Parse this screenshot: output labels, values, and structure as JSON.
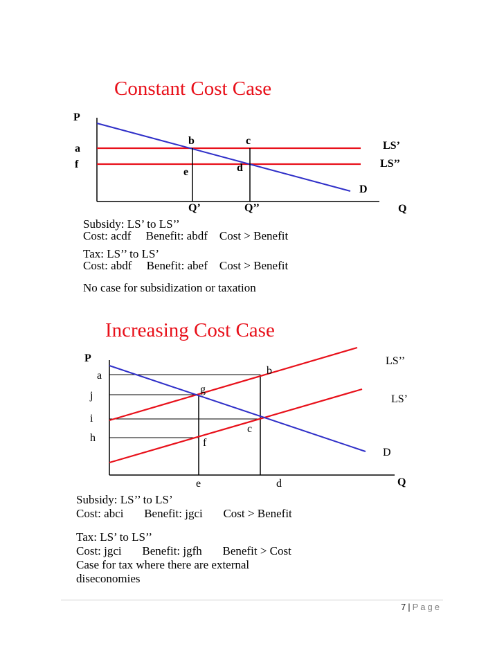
{
  "colors": {
    "supply": "#e8101a",
    "demand": "#2f2fc8",
    "axes": "#000000"
  },
  "constant": {
    "title": "Constant Cost Case",
    "axis_p": "P",
    "axis_q": "Q",
    "labels": {
      "a": "a",
      "f": "f",
      "b": "b",
      "c": "c",
      "e": "e",
      "d": "d",
      "ls1": "LS’",
      "ls2": "LS’’",
      "demand": "D",
      "q1": "Q’",
      "q2": "Q’’"
    },
    "lines": [
      "Subsidy: LS’ to LS’’",
      "Cost: acdf     Benefit: abdf    Cost > Benefit",
      "Tax: LS’’ to LS’",
      "Cost: abdf     Benefit: abef    Cost > Benefit",
      "No case for subsidization or taxation"
    ]
  },
  "increasing": {
    "title": "Increasing Cost Case",
    "axis_p": "P",
    "axis_q": "Q",
    "labels": {
      "a": "a",
      "j": "j",
      "i": "i",
      "h": "h",
      "b": "b",
      "g": "g",
      "c": "c",
      "f": "f",
      "ls2": "LS’’",
      "ls1": "LS’",
      "demand": "D",
      "e": "e",
      "d": "d"
    },
    "lines": [
      "Subsidy: LS’’ to LS’",
      "Cost: abci       Benefit: jgci       Cost > Benefit",
      "Tax: LS’ to LS’’",
      "Cost: jgci       Benefit: jgfh       Benefit > Cost",
      "Case for tax where there are external",
      "diseconomies"
    ]
  },
  "footer": {
    "page_number": "7",
    "separator": "|",
    "page_word": "Page"
  }
}
